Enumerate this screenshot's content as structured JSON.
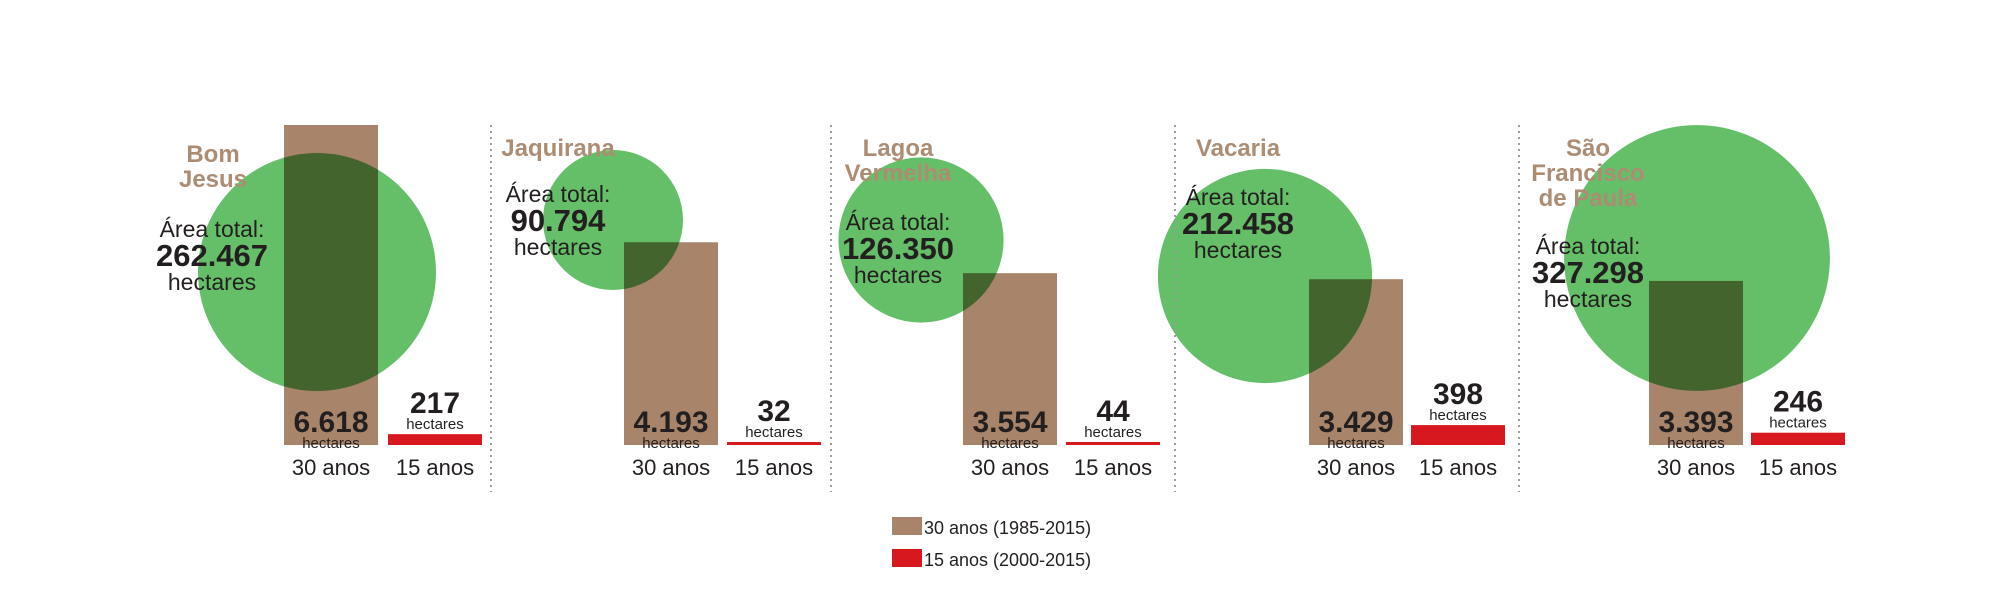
{
  "chart_data": {
    "type": "bar",
    "colors": {
      "bar_30": "#a8856a",
      "bar_15": "#d7191f",
      "circle": "#4cb54f",
      "name": "#ad8c74"
    },
    "text": {
      "area_label": "Área total:",
      "area_unit": "hectares",
      "bar_unit": "hectares",
      "period_30": "30 anos",
      "period_15": "15 anos"
    },
    "legend": [
      {
        "label": "30 anos (1985-2015)",
        "color": "#a8856a"
      },
      {
        "label": "15 anos (2000-2015)",
        "color": "#d7191f"
      }
    ],
    "municipalities": [
      {
        "name": [
          "Bom",
          "Jesus"
        ],
        "area_total": "262.467",
        "area_value": 262467,
        "value_30": 6618,
        "label_30": "6.618",
        "value_15": 217,
        "label_15": "217"
      },
      {
        "name": [
          "Jaquirana"
        ],
        "area_total": "90.794",
        "area_value": 90794,
        "value_30": 4193,
        "label_30": "4.193",
        "value_15": 32,
        "label_15": "32"
      },
      {
        "name": [
          "Lagoa",
          "Vermelha"
        ],
        "area_total": "126.350",
        "area_value": 126350,
        "value_30": 3554,
        "label_30": "3.554",
        "value_15": 44,
        "label_15": "44"
      },
      {
        "name": [
          "Vacaria"
        ],
        "area_total": "212.458",
        "area_value": 212458,
        "value_30": 3429,
        "label_30": "3.429",
        "value_15": 398,
        "label_15": "398"
      },
      {
        "name": [
          "São",
          "Francisco",
          "de Paula"
        ],
        "area_total": "327.298",
        "area_value": 327298,
        "value_30": 3393,
        "label_30": "3.393",
        "value_15": 246,
        "label_15": "246"
      }
    ]
  }
}
